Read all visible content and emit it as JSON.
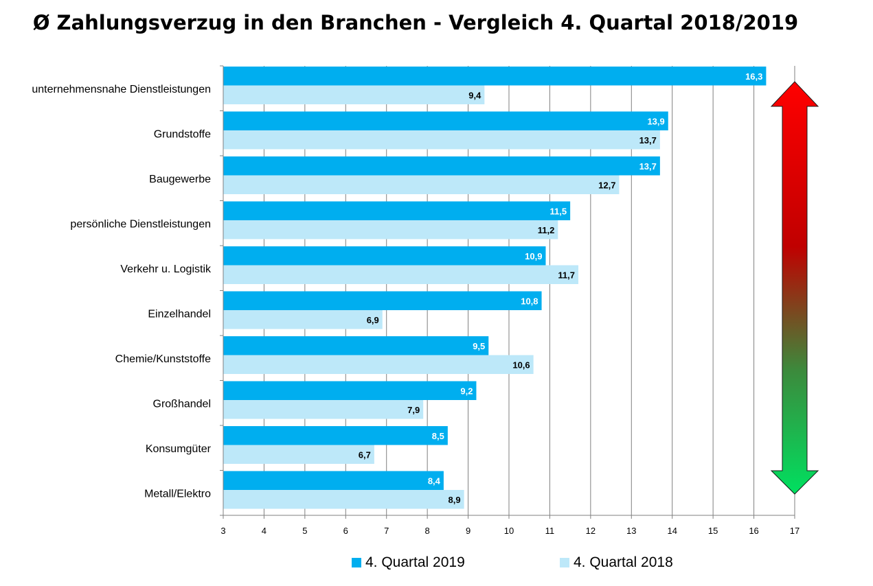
{
  "chart_data": {
    "type": "bar",
    "orientation": "horizontal",
    "title": "Ø Zahlungsverzug in den Branchen - Vergleich 4. Quartal 2018/2019",
    "categories": [
      "unternehmensnahe Dienstleistungen",
      "Grundstoffe",
      "Baugewerbe",
      "persönliche Dienstleistungen",
      "Verkehr u. Logistik",
      "Einzelhandel",
      "Chemie/Kunststoffe",
      "Großhandel",
      "Konsumgüter",
      "Metall/Elektro"
    ],
    "series": [
      {
        "name": "4. Quartal 2019",
        "color": "#00aeef",
        "values": [
          16.3,
          13.9,
          13.7,
          11.5,
          10.9,
          10.8,
          9.5,
          9.2,
          8.5,
          8.4
        ],
        "labels": [
          "16,3",
          "13,9",
          "13,7",
          "11,5",
          "10,9",
          "10,8",
          "9,5",
          "9,2",
          "8,5",
          "8,4"
        ]
      },
      {
        "name": "4. Quartal 2018",
        "color": "#bde8f9",
        "values": [
          9.4,
          13.7,
          12.7,
          11.2,
          11.7,
          6.9,
          10.6,
          7.9,
          6.7,
          8.9
        ],
        "labels": [
          "9,4",
          "13,7",
          "12,7",
          "11,2",
          "11,7",
          "6,9",
          "10,6",
          "7,9",
          "6,7",
          "8,9"
        ]
      }
    ],
    "xlim": [
      3,
      17
    ],
    "xticks": [
      "3",
      "4",
      "5",
      "6",
      "7",
      "8",
      "9",
      "10",
      "11",
      "12",
      "13",
      "14",
      "15",
      "16",
      "17"
    ],
    "grid": true,
    "legend_position": "bottom",
    "annotation": "double-headed arrow red (top) to green (bottom)"
  }
}
